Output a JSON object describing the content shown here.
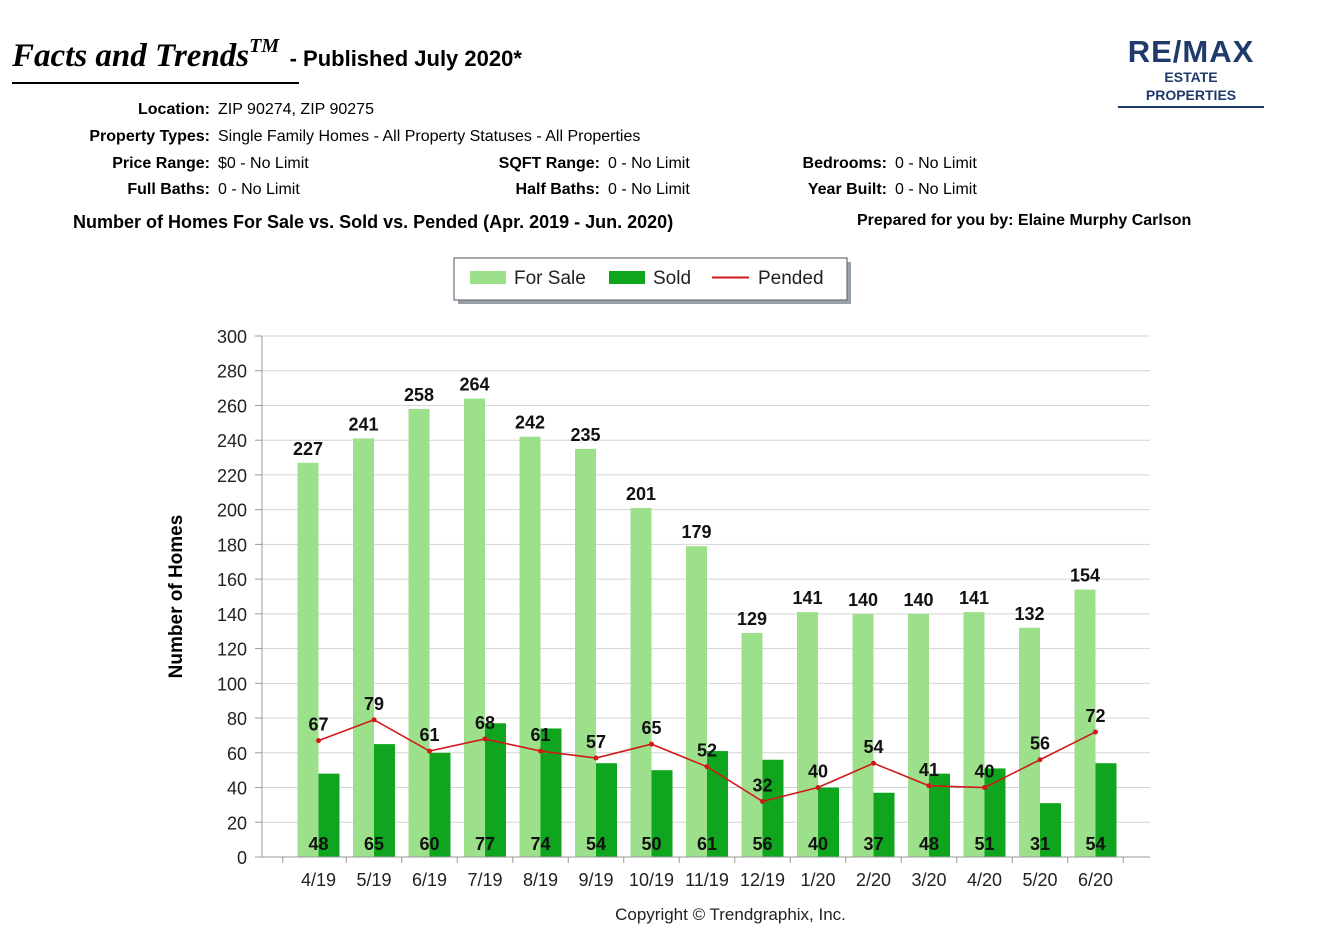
{
  "header": {
    "brand": "Facts and Trends",
    "trademark": "TM",
    "published": "- Published July 2020*"
  },
  "logo": {
    "main": "RE/MAX",
    "sub": "ESTATE PROPERTIES",
    "color": "#1f3a6b"
  },
  "criteria": {
    "location": {
      "label": "Location:",
      "value": "ZIP 90274, ZIP 90275"
    },
    "property_types": {
      "label": "Property Types:",
      "value": "Single Family Homes - All Property Statuses - All Properties"
    },
    "price_range": {
      "label": "Price Range:",
      "value": "$0 - No Limit"
    },
    "sqft_range": {
      "label": "SQFT Range:",
      "value": "0 - No Limit"
    },
    "bedrooms": {
      "label": "Bedrooms:",
      "value": "0 - No Limit"
    },
    "full_baths": {
      "label": "Full Baths:",
      "value": "0 - No Limit"
    },
    "half_baths": {
      "label": "Half Baths:",
      "value": "0 - No Limit"
    },
    "year_built": {
      "label": "Year Built:",
      "value": "0 - No Limit"
    }
  },
  "section_title": "Number of Homes For Sale vs. Sold vs. Pended (Apr. 2019 - Jun. 2020)",
  "prepared_by": "Prepared for you by: Elaine Murphy Carlson",
  "copyright": "Copyright © Trendgraphix, Inc.",
  "colors": {
    "for_sale": "#9de08b",
    "sold": "#0fa51f",
    "pended": "#d01a1a",
    "grid": "#d4d4d4"
  },
  "chart_data": {
    "type": "bar",
    "title": "",
    "xlabel": "",
    "ylabel": "Number of Homes",
    "ylim": [
      0,
      300
    ],
    "yticks": [
      0,
      20,
      40,
      60,
      80,
      100,
      120,
      140,
      160,
      180,
      200,
      220,
      240,
      260,
      280,
      300
    ],
    "grid": true,
    "legend_position": "top-center",
    "categories": [
      "4/19",
      "5/19",
      "6/19",
      "7/19",
      "8/19",
      "9/19",
      "10/19",
      "11/19",
      "12/19",
      "1/20",
      "2/20",
      "3/20",
      "4/20",
      "5/20",
      "6/20"
    ],
    "series": [
      {
        "name": "For Sale",
        "type": "bar",
        "values": [
          227,
          241,
          258,
          264,
          242,
          235,
          201,
          179,
          129,
          141,
          140,
          140,
          141,
          132,
          154
        ]
      },
      {
        "name": "Sold",
        "type": "bar",
        "values": [
          48,
          65,
          60,
          77,
          74,
          54,
          50,
          61,
          56,
          40,
          37,
          48,
          51,
          31,
          54
        ]
      },
      {
        "name": "Pended",
        "type": "line",
        "values": [
          67,
          79,
          61,
          68,
          61,
          57,
          65,
          52,
          32,
          40,
          54,
          41,
          40,
          56,
          72
        ]
      }
    ]
  }
}
